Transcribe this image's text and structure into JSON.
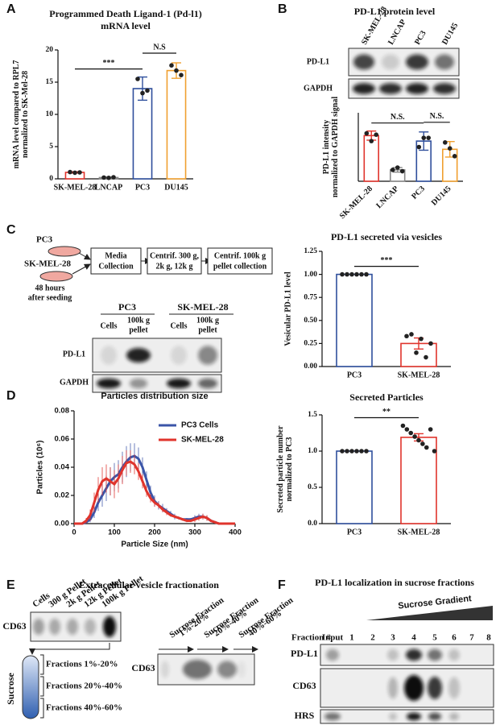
{
  "chart_data": [
    {
      "type": "bar",
      "title": "Programmed Death Ligand-1 (Pd-l1)",
      "subtitle": "mRNA level",
      "ylabel": [
        "mRNA level compared to RPL7",
        "normalized to SK-Mel-28"
      ],
      "categories": [
        "SK-MEL-28",
        "LNCAP",
        "PC3",
        "DU145"
      ],
      "values": [
        1.0,
        0.2,
        14,
        16.8
      ],
      "errors": [
        0.1,
        0.1,
        1.8,
        1.2
      ],
      "points": [
        [
          1.05,
          0.95,
          1.0
        ],
        [
          0.2,
          0.15,
          0.25
        ],
        [
          15.5,
          13.3,
          13.7
        ],
        [
          17.6,
          16.8,
          16.1
        ]
      ],
      "colors": [
        "#e0342c",
        "#888888",
        "#2f4f9c",
        "#f0a030"
      ],
      "ylim": [
        0,
        20
      ],
      "yticks": [
        0,
        5,
        10,
        15,
        20
      ],
      "annotations": [
        {
          "text": "***",
          "between": [
            0,
            2
          ]
        },
        {
          "text": "N.S",
          "between": [
            2,
            3
          ]
        }
      ]
    },
    {
      "type": "bar",
      "ylabel": [
        "PD-L1 intensity",
        "normalized to GAPDH signal"
      ],
      "categories": [
        "SK-MEL-28",
        "LNCAP",
        "PC3",
        "DU145"
      ],
      "values": [
        1.0,
        0.25,
        0.88,
        0.7
      ],
      "errors": [
        0.1,
        0.05,
        0.2,
        0.17
      ],
      "points": [
        [
          1.05,
          0.88,
          1.02
        ],
        [
          0.25,
          0.3,
          0.22
        ],
        [
          0.75,
          0.95,
          0.95
        ],
        [
          0.85,
          0.72,
          0.55
        ]
      ],
      "colors": [
        "#e0342c",
        "#888888",
        "#2f4f9c",
        "#f0a030"
      ],
      "ylim": [
        0,
        1.5
      ],
      "x_label_rotation": -45,
      "annotations": [
        {
          "text": "N.S.",
          "between": [
            0,
            2
          ]
        },
        {
          "text": "N.S.",
          "between": [
            2,
            3
          ]
        }
      ]
    },
    {
      "type": "bar",
      "title": "PD-L1 secreted via vesicles",
      "ylabel": "Vesicular PD-L1 level",
      "categories": [
        "PC3",
        "SK-MEL-28"
      ],
      "values": [
        1.0,
        0.25
      ],
      "errors": [
        0,
        0.06
      ],
      "points": [
        [
          1,
          1,
          1,
          1,
          1,
          1
        ],
        [
          0.33,
          0.35,
          0.15,
          0.3,
          0.1,
          0.25
        ]
      ],
      "colors": [
        "#2f4f9c",
        "#e0342c"
      ],
      "ylim": [
        0,
        1.25
      ],
      "yticks": [
        {
          "value": 0,
          "label": "0.00"
        },
        {
          "value": 0.25,
          "label": "0.25"
        },
        {
          "value": 0.5,
          "label": "0.50"
        },
        {
          "value": 0.75,
          "label": "0.75"
        },
        {
          "value": 1,
          "label": "1.00"
        },
        {
          "value": 1.25,
          "label": "1.25"
        }
      ],
      "annotations": [
        {
          "text": "***",
          "between": [
            0,
            1
          ]
        }
      ]
    },
    {
      "type": "line",
      "title": "Particles distribution size",
      "xlabel": "Particle Size (nm)",
      "ylabel": "Particles (10⁶)",
      "x": [
        0,
        10,
        20,
        30,
        40,
        50,
        60,
        70,
        80,
        90,
        100,
        110,
        120,
        130,
        140,
        150,
        160,
        170,
        180,
        190,
        200,
        210,
        220,
        230,
        240,
        250,
        260,
        270,
        280,
        290,
        300,
        310,
        320,
        330,
        340,
        350,
        360,
        370,
        380,
        390,
        400
      ],
      "series": [
        {
          "name": "PC3 Cells",
          "color": "#3b55a8",
          "values": [
            0,
            0,
            0,
            0.001,
            0.003,
            0.008,
            0.015,
            0.02,
            0.025,
            0.03,
            0.033,
            0.035,
            0.04,
            0.044,
            0.047,
            0.048,
            0.046,
            0.04,
            0.031,
            0.022,
            0.016,
            0.013,
            0.011,
            0.009,
            0.007,
            0.005,
            0.004,
            0.003,
            0.003,
            0.003,
            0.004,
            0.005,
            0.005,
            0.004,
            0.002,
            0.001,
            0,
            0,
            0,
            0,
            0
          ],
          "errors": [
            0,
            0,
            0,
            0.001,
            0.002,
            0.004,
            0.006,
            0.008,
            0.009,
            0.01,
            0.01,
            0.01,
            0.011,
            0.011,
            0.01,
            0.009,
            0.008,
            0.007,
            0.006,
            0.005,
            0.004,
            0.003,
            0.003,
            0.002,
            0.002,
            0.002,
            0.001,
            0.001,
            0.001,
            0.001,
            0.002,
            0.002,
            0.002,
            0.002,
            0.001,
            0.001,
            0,
            0,
            0,
            0,
            0
          ]
        },
        {
          "name": "SK-MEL-28",
          "color": "#e0342c",
          "values": [
            0,
            0,
            0,
            0.002,
            0.006,
            0.015,
            0.024,
            0.03,
            0.032,
            0.03,
            0.028,
            0.032,
            0.038,
            0.043,
            0.044,
            0.042,
            0.037,
            0.03,
            0.023,
            0.018,
            0.015,
            0.013,
            0.01,
            0.008,
            0.006,
            0.005,
            0.004,
            0.003,
            0.002,
            0.002,
            0.003,
            0.004,
            0.005,
            0.004,
            0.002,
            0.001,
            0,
            0,
            0,
            0,
            0
          ],
          "errors": [
            0,
            0,
            0,
            0.002,
            0.004,
            0.007,
            0.009,
            0.01,
            0.01,
            0.01,
            0.01,
            0.01,
            0.01,
            0.009,
            0.008,
            0.007,
            0.006,
            0.005,
            0.004,
            0.003,
            0.003,
            0.002,
            0.002,
            0.002,
            0.001,
            0.001,
            0.001,
            0.001,
            0.001,
            0.001,
            0.002,
            0.002,
            0.002,
            0.002,
            0.001,
            0.001,
            0,
            0,
            0,
            0,
            0
          ]
        }
      ],
      "xlim": [
        0,
        400
      ],
      "xticks": [
        0,
        100,
        200,
        300,
        400
      ],
      "ylim": [
        0,
        0.08
      ],
      "yticks": [
        {
          "value": 0,
          "label": "0.00"
        },
        {
          "value": 0.02,
          "label": "0.02"
        },
        {
          "value": 0.04,
          "label": "0.04"
        },
        {
          "value": 0.06,
          "label": "0.06"
        },
        {
          "value": 0.08,
          "label": "0.08"
        }
      ],
      "legend": "upper right"
    },
    {
      "type": "bar",
      "title": "Secreted Particles",
      "ylabel": [
        "Secreted particle number",
        "normalized to PC3"
      ],
      "categories": [
        "PC3",
        "SK-MEL-28"
      ],
      "values": [
        1.0,
        1.19
      ],
      "errors": [
        0,
        0.05
      ],
      "points": [
        [
          1,
          1,
          1,
          1,
          1,
          1
        ],
        [
          1.35,
          1.3,
          1.25,
          1.2,
          1.15,
          1.1,
          1.05,
          1.3,
          1.0
        ]
      ],
      "colors": [
        "#2f4f9c",
        "#e0342c"
      ],
      "ylim": [
        0,
        1.5
      ],
      "yticks": [
        {
          "value": 0,
          "label": "0.0"
        },
        {
          "value": 0.5,
          "label": "0.5"
        },
        {
          "value": 1,
          "label": "1.0"
        },
        {
          "value": 1.5,
          "label": "1.5"
        }
      ],
      "annotations": [
        {
          "text": "**",
          "between": [
            0,
            1
          ]
        }
      ]
    }
  ],
  "figure": {
    "panel_labels": [
      "A",
      "B",
      "C",
      "D",
      "E",
      "F"
    ],
    "b_blot": {
      "title": "PD-L1 protein level",
      "lanes": [
        "SK-MEL-28",
        "LNCAP",
        "PC3",
        "DU145"
      ],
      "rows": [
        "PD-L1",
        "GAPDH"
      ]
    },
    "c_diagram": {
      "cells": [
        "PC3",
        "SK-MEL-28"
      ],
      "note": [
        "48 hours",
        "after seeding"
      ],
      "steps": [
        [
          "Media",
          "Collection"
        ],
        [
          "Centrif. 300 g,",
          "2k g, 12k g"
        ],
        [
          "Centrif. 100k g",
          "pellet collection"
        ]
      ]
    },
    "c_blot": {
      "groups": [
        "PC3",
        "SK-MEL-28"
      ],
      "lanes": [
        [
          "Cells"
        ],
        [
          "100k g",
          "pellet"
        ],
        [
          "Cells"
        ],
        [
          "100k g",
          "pellet"
        ]
      ],
      "rows": [
        "PD-L1",
        "GAPDH"
      ]
    },
    "e": {
      "title": "Extracellular vesicle fractionation",
      "lanes": [
        "Cells",
        "300 g Pellet",
        "2k g Pellet",
        "12k g Pellet",
        "100k g Pellet"
      ],
      "row": "CD63",
      "tube_label": "Sucrose",
      "fractions": [
        "Fractions 1%-20%",
        "Fractions 20%-40%",
        "Fractions 40%-60%"
      ],
      "fraction_lanes": [
        [
          "Sucrose Fraction",
          "1%-20%"
        ],
        [
          "Sucrose Fraction",
          "20%-40%"
        ],
        [
          "Sucrose Fraction",
          "40%-60%"
        ]
      ],
      "row2": "CD63"
    },
    "f": {
      "title": "PD-L1 localization in sucrose fractions",
      "gradient": "Sucrose Gradient",
      "lane_header": "Fraction #",
      "lanes": [
        "Input",
        "1",
        "2",
        "3",
        "4",
        "5",
        "6",
        "7",
        "8"
      ],
      "rows": [
        "PD-L1",
        "CD63",
        "HRS"
      ]
    }
  }
}
